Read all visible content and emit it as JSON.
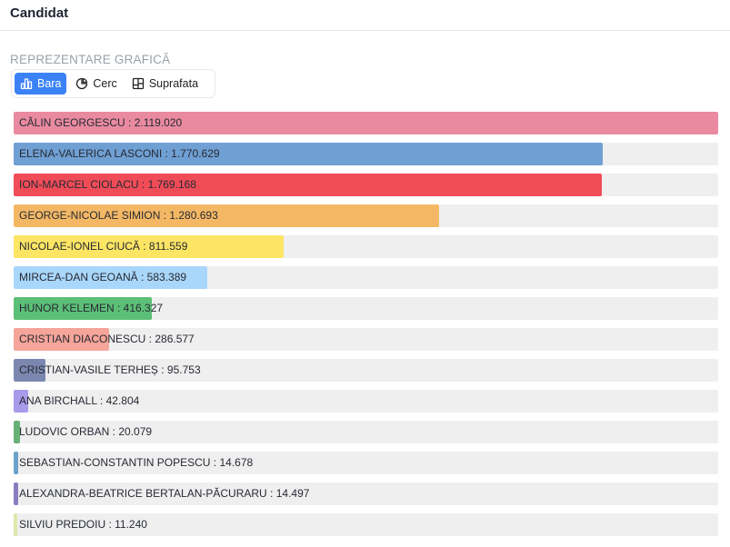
{
  "header": {
    "title": "Candidat"
  },
  "section_label": "REPREZENTARE GRAFICĂ",
  "view_toggle": {
    "options": [
      {
        "label": "Bara",
        "icon": "bar-chart-icon",
        "active": true
      },
      {
        "label": "Cerc",
        "icon": "pie-chart-icon",
        "active": false
      },
      {
        "label": "Suprafata",
        "icon": "treemap-icon",
        "active": false
      }
    ]
  },
  "chart_data": {
    "type": "bar",
    "orientation": "horizontal",
    "categories": [
      "CĂLIN GEORGESCU",
      "ELENA-VALERICA LASCONI",
      "ION-MARCEL CIOLACU",
      "GEORGE-NICOLAE SIMION",
      "NICOLAE-IONEL CIUCĂ",
      "MIRCEA-DAN GEOANĂ",
      "HUNOR KELEMEN",
      "CRISTIAN DIACONESCU",
      "CRISTIAN-VASILE TERHEȘ",
      "ANA BIRCHALL",
      "LUDOVIC ORBAN",
      "SEBASTIAN-CONSTANTIN POPESCU",
      "ALEXANDRA-BEATRICE BERTALAN-PĂCURARU",
      "SILVIU PREDOIU"
    ],
    "values": [
      2119020,
      1770629,
      1769168,
      1280693,
      811559,
      583389,
      416327,
      286577,
      95753,
      42804,
      20079,
      14678,
      14497,
      11240
    ],
    "value_labels": [
      "2.119.020",
      "1.770.629",
      "1.769.168",
      "1.280.693",
      "811.559",
      "583.389",
      "416.327",
      "286.577",
      "95.753",
      "42.804",
      "20.079",
      "14.678",
      "14.497",
      "11.240"
    ],
    "labels": [
      "CĂLIN GEORGESCU : 2.119.020",
      "ELENA-VALERICA LASCONI : 1.770.629",
      "ION-MARCEL CIOLACU : 1.769.168",
      "GEORGE-NICOLAE SIMION : 1.280.693",
      "NICOLAE-IONEL CIUCĂ : 811.559",
      "MIRCEA-DAN GEOANĂ : 583.389",
      "HUNOR KELEMEN : 416.327",
      "CRISTIAN DIACONESCU : 286.577",
      "CRISTIAN-VASILE TERHEȘ : 95.753",
      "ANA BIRCHALL : 42.804",
      "LUDOVIC ORBAN : 20.079",
      "SEBASTIAN-CONSTANTIN POPESCU : 14.678",
      "ALEXANDRA-BEATRICE BERTALAN-PĂCURARU : 14.497",
      "SILVIU PREDOIU : 11.240"
    ],
    "colors": [
      "#ea8aa1",
      "#6f9fd3",
      "#f04c58",
      "#f4b865",
      "#fde564",
      "#a9d6fb",
      "#5cbf77",
      "#f6a59a",
      "#7c87b0",
      "#a79bea",
      "#69b078",
      "#6aa2c9",
      "#8b7cc0",
      "#dfe8a8"
    ],
    "xlim": [
      0,
      2119020
    ],
    "title": "",
    "xlabel": "",
    "ylabel": "",
    "grid": false,
    "legend": "none"
  }
}
